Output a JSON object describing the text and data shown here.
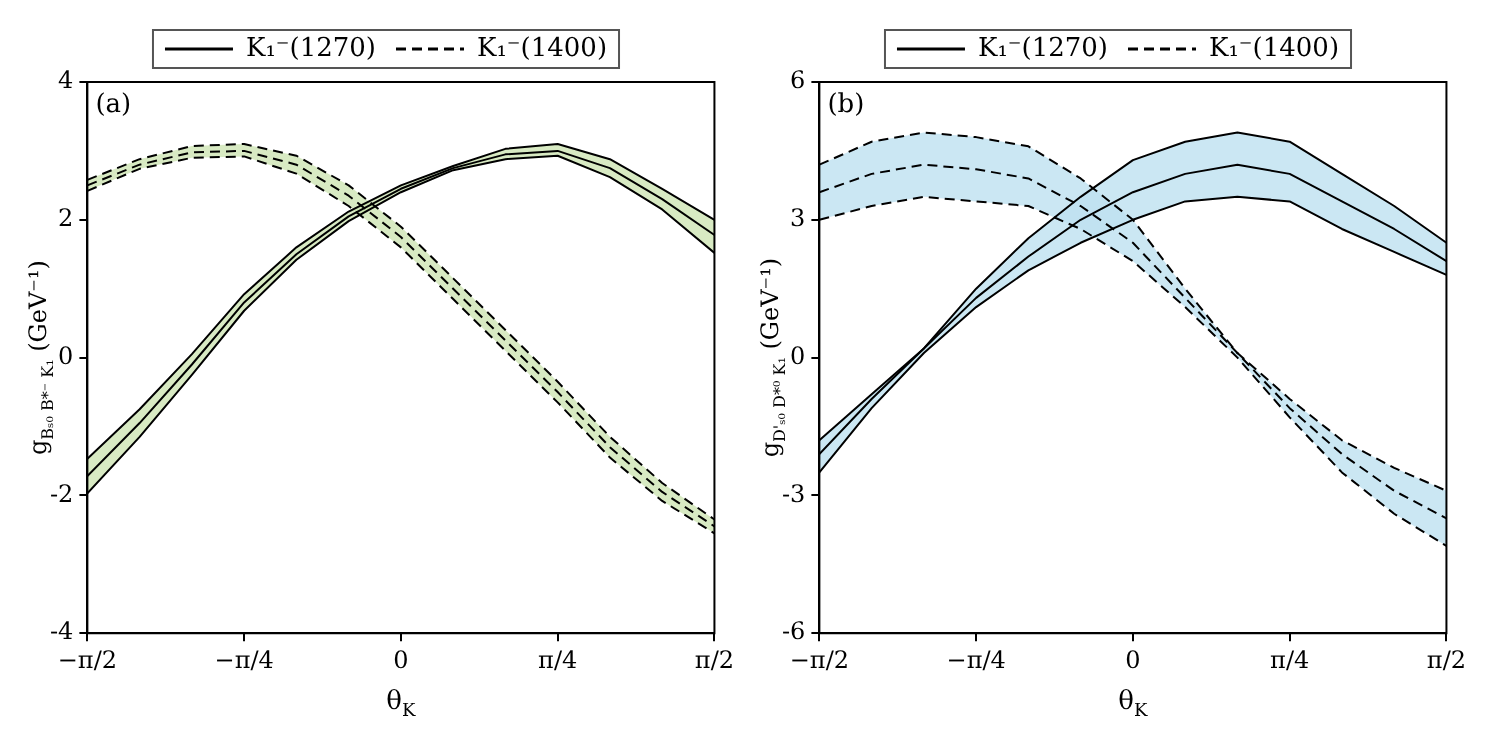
{
  "chart_data": [
    {
      "type": "line",
      "xlabel": "θ$_{K}$",
      "ylabel": "g$_{Bₛ₀ B*⁻ K₁}$ (GeV⁻¹)",
      "annotations": [
        "(a)"
      ],
      "legend": "top",
      "grid": false,
      "x": [
        -1.5708,
        -1.309,
        -1.0472,
        -0.7854,
        -0.5236,
        -0.2618,
        0,
        0.2618,
        0.5236,
        0.7854,
        1.0472,
        1.309,
        1.5708
      ],
      "xlim": [
        -1.5708,
        1.5708
      ],
      "xticks": [
        {
          "value": -1.5708,
          "label": "−π/2"
        },
        {
          "value": -0.7854,
          "label": "−π/4"
        },
        0,
        {
          "value": 0.7854,
          "label": "π/4"
        },
        {
          "value": 1.5708,
          "label": "π/2"
        }
      ],
      "ylim": [
        -4,
        4
      ],
      "yticks": [
        -4,
        -2,
        0,
        2,
        4
      ],
      "series": [
        {
          "name": "K₁⁻(1270)",
          "color": "#000000",
          "line_style": "solid",
          "values": [
            -1.72,
            -0.95,
            -0.1,
            0.8,
            1.5,
            2.05,
            2.45,
            2.75,
            2.95,
            3.0,
            2.75,
            2.3,
            1.78
          ],
          "lower": [
            -1.97,
            -1.15,
            -0.25,
            0.68,
            1.42,
            1.98,
            2.4,
            2.72,
            2.88,
            2.93,
            2.62,
            2.15,
            1.52
          ],
          "upper": [
            -1.47,
            -0.75,
            0.05,
            0.92,
            1.6,
            2.12,
            2.5,
            2.78,
            3.03,
            3.1,
            2.88,
            2.45,
            2.0
          ]
        },
        {
          "name": "K₁⁻(1400)",
          "color": "#000000",
          "line_style": "dashed",
          "values": [
            2.5,
            2.8,
            2.98,
            3.0,
            2.8,
            2.35,
            1.75,
            1.0,
            0.25,
            -0.5,
            -1.3,
            -1.95,
            -2.45
          ],
          "lower": [
            2.42,
            2.74,
            2.9,
            2.92,
            2.67,
            2.2,
            1.6,
            0.85,
            0.1,
            -0.65,
            -1.45,
            -2.08,
            -2.55
          ],
          "upper": [
            2.58,
            2.88,
            3.07,
            3.1,
            2.93,
            2.5,
            1.9,
            1.15,
            0.4,
            -0.35,
            -1.15,
            -1.82,
            -2.35
          ]
        },
        {
          "color": "#000000",
          "line_style": "solid",
          "values": [
            -1.97,
            -1.15,
            -0.25,
            0.68,
            1.42,
            1.98,
            2.4,
            2.72,
            2.88,
            2.93,
            2.62,
            2.15,
            1.52
          ]
        },
        {
          "color": "#000000",
          "line_style": "solid",
          "values": [
            -1.47,
            -0.75,
            0.05,
            0.92,
            1.6,
            2.12,
            2.5,
            2.78,
            3.03,
            3.1,
            2.88,
            2.45,
            2.0
          ]
        },
        {
          "color": "#000000",
          "line_style": "dashed",
          "values": [
            2.42,
            2.74,
            2.9,
            2.92,
            2.67,
            2.2,
            1.6,
            0.85,
            0.1,
            -0.65,
            -1.45,
            -2.08,
            -2.55
          ]
        },
        {
          "color": "#000000",
          "line_style": "dashed",
          "values": [
            2.58,
            2.88,
            3.07,
            3.1,
            2.93,
            2.5,
            1.9,
            1.15,
            0.4,
            -0.35,
            -1.15,
            -1.82,
            -2.35
          ]
        }
      ]
    },
    {
      "type": "line",
      "xlabel": "θ$_{K}$",
      "ylabel": "g$_{D'ₛ₀ D*⁰ K₁}$ (GeV⁻¹)",
      "annotations": [
        "(b)"
      ],
      "legend": "top",
      "grid": false,
      "x": [
        -1.5708,
        -1.309,
        -1.0472,
        -0.7854,
        -0.5236,
        -0.2618,
        0,
        0.2618,
        0.5236,
        0.7854,
        1.0472,
        1.309,
        1.5708
      ],
      "xlim": [
        -1.5708,
        1.5708
      ],
      "xticks": [
        {
          "value": -1.5708,
          "label": "−π/2"
        },
        {
          "value": -0.7854,
          "label": "−π/4"
        },
        0,
        {
          "value": 0.7854,
          "label": "π/4"
        },
        {
          "value": 1.5708,
          "label": "π/2"
        }
      ],
      "ylim": [
        -6,
        6
      ],
      "yticks": [
        -6,
        -3,
        0,
        3,
        6
      ],
      "series": [
        {
          "name": "K₁⁻(1270)",
          "color": "#000000",
          "line_style": "solid",
          "values": [
            -2.1,
            -0.9,
            0.2,
            1.3,
            2.2,
            3.0,
            3.6,
            4.0,
            4.2,
            4.0,
            3.4,
            2.8,
            2.1
          ],
          "lower": [
            -2.5,
            -1.1,
            0.1,
            1.1,
            1.9,
            2.5,
            3.0,
            3.4,
            3.5,
            3.4,
            2.8,
            2.3,
            1.8
          ],
          "upper": [
            -1.8,
            -0.8,
            0.2,
            1.5,
            2.6,
            3.5,
            4.3,
            4.7,
            4.9,
            4.7,
            4.0,
            3.3,
            2.5
          ]
        },
        {
          "name": "K₁⁻(1400)",
          "color": "#000000",
          "line_style": "dashed",
          "values": [
            3.6,
            4.0,
            4.2,
            4.1,
            3.9,
            3.3,
            2.5,
            1.3,
            0.1,
            -1.1,
            -2.1,
            -2.9,
            -3.5
          ],
          "lower": [
            3.0,
            3.3,
            3.5,
            3.4,
            3.3,
            2.8,
            2.1,
            1.1,
            0.0,
            -1.3,
            -2.5,
            -3.4,
            -4.1
          ],
          "upper": [
            4.2,
            4.7,
            4.9,
            4.8,
            4.6,
            3.9,
            3.0,
            1.5,
            0.1,
            -0.9,
            -1.8,
            -2.4,
            -2.9
          ]
        },
        {
          "color": "#000000",
          "line_style": "solid",
          "values": [
            -2.5,
            -1.1,
            0.1,
            1.1,
            1.9,
            2.5,
            3.0,
            3.4,
            3.5,
            3.4,
            2.8,
            2.3,
            1.8
          ]
        },
        {
          "color": "#000000",
          "line_style": "solid",
          "values": [
            -1.8,
            -0.8,
            0.2,
            1.5,
            2.6,
            3.5,
            4.3,
            4.7,
            4.9,
            4.7,
            4.0,
            3.3,
            2.5
          ]
        },
        {
          "color": "#000000",
          "line_style": "dashed",
          "values": [
            3.0,
            3.3,
            3.5,
            3.4,
            3.3,
            2.8,
            2.1,
            1.1,
            0.0,
            -1.3,
            -2.5,
            -3.4,
            -4.1
          ]
        },
        {
          "color": "#000000",
          "line_style": "dashed",
          "values": [
            4.2,
            4.7,
            4.9,
            4.8,
            4.6,
            3.9,
            3.0,
            1.5,
            0.1,
            -0.9,
            -1.8,
            -2.4,
            -2.9
          ]
        }
      ]
    }
  ]
}
